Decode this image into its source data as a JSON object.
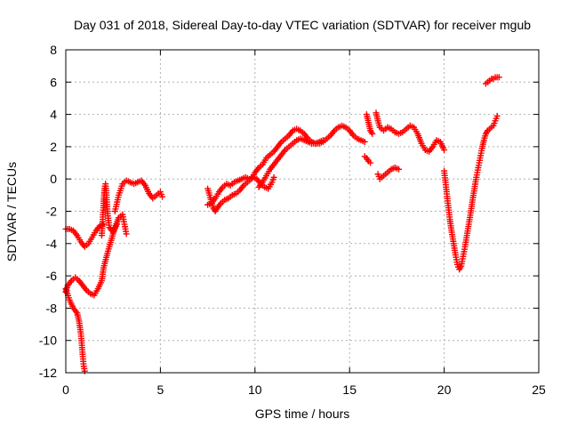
{
  "chart_data": {
    "type": "scatter",
    "title": "Day 031 of 2018, Sidereal Day-to-day VTEC variation (SDTVAR) for receiver mgub",
    "xlabel": "GPS time / hours",
    "ylabel": "SDTVAR / TECUs",
    "xlim": [
      0,
      25
    ],
    "ylim": [
      -12,
      8
    ],
    "x_ticks": [
      0,
      5,
      10,
      15,
      20,
      25
    ],
    "y_ticks": [
      -12,
      -10,
      -8,
      -6,
      -4,
      -2,
      0,
      2,
      4,
      6,
      8
    ],
    "x_tick_labels": [
      "0",
      "5",
      "10",
      "15",
      "20",
      "25"
    ],
    "y_tick_labels": [
      "-12",
      "-10",
      "-8",
      "-6",
      "-4",
      "-2",
      "0",
      "2",
      "4",
      "6",
      "8"
    ],
    "grid": true,
    "marker": "plus",
    "series": [
      {
        "color": "#ff0000",
        "segments": [
          [
            [
              0.0,
              -3.1
            ],
            [
              0.2,
              -3.1
            ],
            [
              0.4,
              -3.2
            ],
            [
              0.6,
              -3.5
            ],
            [
              0.8,
              -3.9
            ],
            [
              1.0,
              -4.2
            ],
            [
              1.2,
              -4.0
            ],
            [
              1.4,
              -3.6
            ],
            [
              1.6,
              -3.2
            ],
            [
              1.8,
              -2.9
            ],
            [
              2.0,
              -2.8
            ]
          ],
          [
            [
              0.0,
              -7.0
            ],
            [
              0.1,
              -6.6
            ],
            [
              0.3,
              -6.3
            ],
            [
              0.5,
              -6.1
            ],
            [
              0.7,
              -6.3
            ],
            [
              0.9,
              -6.6
            ],
            [
              1.1,
              -6.9
            ],
            [
              1.3,
              -7.1
            ],
            [
              1.5,
              -7.2
            ],
            [
              1.7,
              -6.8
            ],
            [
              1.9,
              -6.3
            ],
            [
              2.0,
              -5.5
            ],
            [
              2.2,
              -4.6
            ],
            [
              2.4,
              -3.8
            ],
            [
              2.6,
              -3.0
            ],
            [
              2.8,
              -2.4
            ],
            [
              3.0,
              -2.2
            ],
            [
              3.1,
              -2.8
            ],
            [
              3.2,
              -3.4
            ]
          ],
          [
            [
              0.0,
              -6.8
            ],
            [
              0.2,
              -7.5
            ],
            [
              0.4,
              -8.0
            ],
            [
              0.6,
              -8.3
            ],
            [
              0.7,
              -8.8
            ],
            [
              0.8,
              -9.6
            ],
            [
              0.85,
              -10.3
            ],
            [
              0.9,
              -11.0
            ],
            [
              0.95,
              -11.6
            ],
            [
              1.0,
              -11.9
            ]
          ],
          [
            [
              1.9,
              -3.5
            ],
            [
              1.95,
              -2.5
            ],
            [
              2.0,
              -1.5
            ],
            [
              2.05,
              -0.6
            ],
            [
              2.1,
              -0.3
            ],
            [
              2.15,
              -1.0
            ],
            [
              2.2,
              -2.0
            ],
            [
              2.3,
              -3.0
            ],
            [
              2.5,
              -3.3
            ],
            [
              2.7,
              -2.8
            ]
          ],
          [
            [
              2.6,
              -2.0
            ],
            [
              2.8,
              -1.0
            ],
            [
              3.0,
              -0.3
            ],
            [
              3.2,
              -0.1
            ],
            [
              3.4,
              -0.2
            ],
            [
              3.6,
              -0.3
            ],
            [
              3.8,
              -0.2
            ],
            [
              4.0,
              -0.1
            ],
            [
              4.2,
              -0.4
            ],
            [
              4.4,
              -0.9
            ],
            [
              4.6,
              -1.2
            ],
            [
              4.8,
              -1.0
            ],
            [
              5.0,
              -0.8
            ],
            [
              5.1,
              -1.1
            ]
          ],
          [
            [
              7.5,
              -0.6
            ],
            [
              7.6,
              -1.0
            ],
            [
              7.7,
              -1.4
            ],
            [
              7.8,
              -1.8
            ],
            [
              7.9,
              -2.0
            ],
            [
              8.0,
              -1.8
            ],
            [
              8.2,
              -1.5
            ],
            [
              8.4,
              -1.3
            ],
            [
              8.6,
              -1.2
            ],
            [
              8.8,
              -1.0
            ],
            [
              9.0,
              -0.9
            ],
            [
              9.2,
              -0.7
            ],
            [
              9.4,
              -0.4
            ],
            [
              9.6,
              -0.2
            ],
            [
              9.8,
              0.0
            ],
            [
              10.0,
              0.4
            ],
            [
              10.2,
              0.7
            ],
            [
              10.4,
              0.9
            ],
            [
              10.6,
              1.3
            ],
            [
              10.8,
              1.5
            ]
          ],
          [
            [
              7.5,
              -1.6
            ],
            [
              7.7,
              -1.5
            ],
            [
              7.9,
              -1.2
            ],
            [
              8.1,
              -0.8
            ],
            [
              8.3,
              -0.5
            ],
            [
              8.5,
              -0.3
            ],
            [
              8.7,
              -0.4
            ],
            [
              8.9,
              -0.2
            ],
            [
              9.1,
              -0.1
            ],
            [
              9.3,
              0.0
            ],
            [
              9.5,
              0.1
            ],
            [
              9.7,
              0.0
            ],
            [
              9.9,
              0.1
            ],
            [
              10.1,
              0.0
            ],
            [
              10.3,
              -0.3
            ],
            [
              10.5,
              -0.5
            ],
            [
              10.7,
              -0.6
            ],
            [
              10.9,
              -0.2
            ],
            [
              11.0,
              0.1
            ]
          ],
          [
            [
              10.8,
              1.5
            ],
            [
              11.0,
              1.7
            ],
            [
              11.2,
              2.0
            ],
            [
              11.4,
              2.3
            ],
            [
              11.6,
              2.5
            ],
            [
              11.8,
              2.7
            ],
            [
              12.0,
              3.0
            ],
            [
              12.2,
              3.1
            ],
            [
              12.4,
              3.0
            ],
            [
              12.6,
              2.8
            ],
            [
              12.8,
              2.5
            ],
            [
              13.0,
              2.3
            ],
            [
              13.2,
              2.2
            ],
            [
              13.4,
              2.2
            ],
            [
              13.6,
              2.3
            ],
            [
              13.8,
              2.5
            ],
            [
              14.0,
              2.7
            ],
            [
              14.2,
              3.0
            ],
            [
              14.4,
              3.2
            ],
            [
              14.6,
              3.3
            ],
            [
              14.8,
              3.2
            ],
            [
              15.0,
              3.0
            ],
            [
              15.2,
              2.7
            ],
            [
              15.4,
              2.5
            ],
            [
              15.6,
              2.4
            ],
            [
              15.8,
              2.3
            ]
          ],
          [
            [
              10.2,
              -0.5
            ],
            [
              10.4,
              -0.2
            ],
            [
              10.6,
              0.2
            ],
            [
              10.8,
              0.6
            ],
            [
              11.0,
              0.9
            ],
            [
              11.2,
              1.2
            ],
            [
              11.4,
              1.5
            ],
            [
              11.6,
              1.8
            ],
            [
              11.8,
              2.0
            ],
            [
              12.0,
              2.2
            ],
            [
              12.2,
              2.4
            ],
            [
              12.4,
              2.5
            ],
            [
              12.6,
              2.4
            ],
            [
              12.8,
              2.3
            ],
            [
              13.0,
              2.2
            ],
            [
              13.2,
              2.2
            ],
            [
              13.4,
              2.3
            ],
            [
              13.6,
              2.4
            ]
          ],
          [
            [
              15.8,
              1.4
            ],
            [
              15.9,
              1.3
            ],
            [
              16.0,
              1.1
            ],
            [
              16.1,
              1.0
            ]
          ],
          [
            [
              15.9,
              4.0
            ],
            [
              16.0,
              3.5
            ],
            [
              16.1,
              3.0
            ],
            [
              16.2,
              2.8
            ]
          ],
          [
            [
              16.4,
              4.1
            ],
            [
              16.5,
              3.6
            ],
            [
              16.6,
              3.2
            ],
            [
              16.8,
              3.0
            ],
            [
              17.0,
              3.2
            ],
            [
              17.2,
              3.1
            ],
            [
              17.4,
              2.9
            ],
            [
              17.6,
              2.8
            ],
            [
              17.8,
              2.9
            ],
            [
              18.0,
              3.1
            ],
            [
              18.2,
              3.3
            ],
            [
              18.4,
              3.2
            ],
            [
              18.6,
              2.8
            ],
            [
              18.8,
              2.2
            ],
            [
              19.0,
              1.8
            ],
            [
              19.2,
              1.7
            ],
            [
              19.4,
              2.0
            ],
            [
              19.6,
              2.4
            ],
            [
              19.8,
              2.3
            ],
            [
              20.0,
              1.8
            ]
          ],
          [
            [
              16.5,
              0.3
            ],
            [
              16.6,
              0.0
            ],
            [
              16.8,
              0.2
            ],
            [
              17.0,
              0.4
            ],
            [
              17.2,
              0.6
            ],
            [
              17.4,
              0.7
            ],
            [
              17.6,
              0.6
            ]
          ],
          [
            [
              20.0,
              0.5
            ],
            [
              20.1,
              -0.5
            ],
            [
              20.2,
              -1.5
            ],
            [
              20.3,
              -2.5
            ],
            [
              20.4,
              -3.3
            ],
            [
              20.5,
              -4.0
            ],
            [
              20.6,
              -4.7
            ],
            [
              20.7,
              -5.3
            ],
            [
              20.8,
              -5.6
            ],
            [
              20.9,
              -5.4
            ],
            [
              21.0,
              -4.8
            ],
            [
              21.1,
              -4.2
            ],
            [
              21.2,
              -3.5
            ],
            [
              21.3,
              -2.8
            ],
            [
              21.4,
              -2.1
            ],
            [
              21.5,
              -1.3
            ],
            [
              21.6,
              -0.6
            ],
            [
              21.7,
              0.1
            ],
            [
              21.8,
              0.7
            ],
            [
              21.9,
              1.3
            ],
            [
              22.0,
              1.9
            ],
            [
              22.1,
              2.4
            ],
            [
              22.2,
              2.8
            ],
            [
              22.3,
              3.0
            ],
            [
              22.4,
              3.1
            ],
            [
              22.5,
              3.2
            ],
            [
              22.6,
              3.3
            ],
            [
              22.7,
              3.6
            ],
            [
              22.8,
              3.9
            ]
          ],
          [
            [
              22.2,
              5.9
            ],
            [
              22.3,
              6.0
            ],
            [
              22.4,
              6.1
            ],
            [
              22.5,
              6.2
            ],
            [
              22.6,
              6.2
            ],
            [
              22.7,
              6.3
            ],
            [
              22.8,
              6.3
            ],
            [
              22.9,
              6.3
            ]
          ]
        ]
      }
    ]
  }
}
